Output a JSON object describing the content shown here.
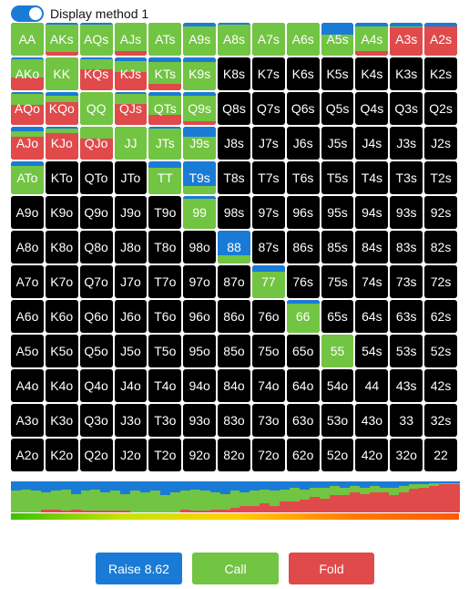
{
  "toggle": {
    "label": "Display method 1",
    "checked": true
  },
  "colors": {
    "raise": "#1a7bd6",
    "call": "#72c443",
    "fold": "#e04a4a",
    "empty": "#000000"
  },
  "legend_bar": {
    "min_color": "#3ec000",
    "max_color": "#ff5a00"
  },
  "buttons": {
    "raise_label": "Raise 8.62",
    "call_label": "Call",
    "fold_label": "Fold"
  },
  "grid": [
    [
      {
        "h": "AA",
        "r": 0,
        "c": 1,
        "f": 0
      },
      {
        "h": "AKs",
        "r": 0.05,
        "c": 0.85,
        "f": 0.1
      },
      {
        "h": "AQs",
        "r": 0.05,
        "c": 0.95,
        "f": 0
      },
      {
        "h": "AJs",
        "r": 0,
        "c": 0.85,
        "f": 0.15
      },
      {
        "h": "ATs",
        "r": 0,
        "c": 1,
        "f": 0
      },
      {
        "h": "A9s",
        "r": 0.1,
        "c": 0.9,
        "f": 0
      },
      {
        "h": "A8s",
        "r": 0.05,
        "c": 0.95,
        "f": 0
      },
      {
        "h": "A7s",
        "r": 0,
        "c": 1,
        "f": 0
      },
      {
        "h": "A6s",
        "r": 0,
        "c": 1,
        "f": 0
      },
      {
        "h": "A5s",
        "r": 0.35,
        "c": 0.65,
        "f": 0
      },
      {
        "h": "A4s",
        "r": 0.1,
        "c": 0.75,
        "f": 0.15
      },
      {
        "h": "A3s",
        "r": 0.1,
        "c": 0.05,
        "f": 0.85
      },
      {
        "h": "A2s",
        "r": 0.1,
        "c": 0,
        "f": 0.9
      }
    ],
    [
      {
        "h": "AKo",
        "r": 0.05,
        "c": 0.55,
        "f": 0.4
      },
      {
        "h": "KK",
        "r": 0,
        "c": 1,
        "f": 0
      },
      {
        "h": "KQs",
        "r": 0.05,
        "c": 0.3,
        "f": 0.65
      },
      {
        "h": "KJs",
        "r": 0.1,
        "c": 0.35,
        "f": 0.55
      },
      {
        "h": "KTs",
        "r": 0.15,
        "c": 0.65,
        "f": 0.2
      },
      {
        "h": "K9s",
        "r": 0.15,
        "c": 0.85,
        "f": 0
      },
      {
        "h": "K8s",
        "r": 0,
        "c": 0,
        "f": 0
      },
      {
        "h": "K7s",
        "r": 0,
        "c": 0,
        "f": 0
      },
      {
        "h": "K6s",
        "r": 0,
        "c": 0,
        "f": 0
      },
      {
        "h": "K5s",
        "r": 0,
        "c": 0,
        "f": 0
      },
      {
        "h": "K4s",
        "r": 0,
        "c": 0,
        "f": 0
      },
      {
        "h": "K3s",
        "r": 0,
        "c": 0,
        "f": 0
      },
      {
        "h": "K2s",
        "r": 0,
        "c": 0,
        "f": 0
      }
    ],
    [
      {
        "h": "AQo",
        "r": 0.05,
        "c": 0.35,
        "f": 0.6
      },
      {
        "h": "KQo",
        "r": 0.1,
        "c": 0.2,
        "f": 0.7
      },
      {
        "h": "QQ",
        "r": 0,
        "c": 1,
        "f": 0
      },
      {
        "h": "QJs",
        "r": 0.05,
        "c": 0.3,
        "f": 0.65
      },
      {
        "h": "QTs",
        "r": 0.1,
        "c": 0.6,
        "f": 0.3
      },
      {
        "h": "Q9s",
        "r": 0.1,
        "c": 0.8,
        "f": 0.1
      },
      {
        "h": "Q8s",
        "r": 0,
        "c": 0,
        "f": 0
      },
      {
        "h": "Q7s",
        "r": 0,
        "c": 0,
        "f": 0
      },
      {
        "h": "Q6s",
        "r": 0,
        "c": 0,
        "f": 0
      },
      {
        "h": "Q5s",
        "r": 0,
        "c": 0,
        "f": 0
      },
      {
        "h": "Q4s",
        "r": 0,
        "c": 0,
        "f": 0
      },
      {
        "h": "Q3s",
        "r": 0,
        "c": 0,
        "f": 0
      },
      {
        "h": "Q2s",
        "r": 0,
        "c": 0,
        "f": 0
      }
    ],
    [
      {
        "h": "AJo",
        "r": 0.15,
        "c": 0.15,
        "f": 0.7
      },
      {
        "h": "KJo",
        "r": 0.05,
        "c": 0.15,
        "f": 0.8
      },
      {
        "h": "QJo",
        "r": 0,
        "c": 0.35,
        "f": 0.65
      },
      {
        "h": "JJ",
        "r": 0,
        "c": 1,
        "f": 0
      },
      {
        "h": "JTs",
        "r": 0.05,
        "c": 0.95,
        "f": 0
      },
      {
        "h": "J9s",
        "r": 0.3,
        "c": 0.7,
        "f": 0
      },
      {
        "h": "J8s",
        "r": 0,
        "c": 0,
        "f": 0
      },
      {
        "h": "J7s",
        "r": 0,
        "c": 0,
        "f": 0
      },
      {
        "h": "J6s",
        "r": 0,
        "c": 0,
        "f": 0
      },
      {
        "h": "J5s",
        "r": 0,
        "c": 0,
        "f": 0
      },
      {
        "h": "J4s",
        "r": 0,
        "c": 0,
        "f": 0
      },
      {
        "h": "J3s",
        "r": 0,
        "c": 0,
        "f": 0
      },
      {
        "h": "J2s",
        "r": 0,
        "c": 0,
        "f": 0
      }
    ],
    [
      {
        "h": "ATo",
        "r": 0.15,
        "c": 0.85,
        "f": 0
      },
      {
        "h": "KTo",
        "r": 0,
        "c": 0,
        "f": 0
      },
      {
        "h": "QTo",
        "r": 0,
        "c": 0,
        "f": 0
      },
      {
        "h": "JTo",
        "r": 0,
        "c": 0,
        "f": 0
      },
      {
        "h": "TT",
        "r": 0.2,
        "c": 0.8,
        "f": 0
      },
      {
        "h": "T9s",
        "r": 0.75,
        "c": 0.25,
        "f": 0
      },
      {
        "h": "T8s",
        "r": 0,
        "c": 0,
        "f": 0
      },
      {
        "h": "T7s",
        "r": 0,
        "c": 0,
        "f": 0
      },
      {
        "h": "T6s",
        "r": 0,
        "c": 0,
        "f": 0
      },
      {
        "h": "T5s",
        "r": 0,
        "c": 0,
        "f": 0
      },
      {
        "h": "T4s",
        "r": 0,
        "c": 0,
        "f": 0
      },
      {
        "h": "T3s",
        "r": 0,
        "c": 0,
        "f": 0
      },
      {
        "h": "T2s",
        "r": 0,
        "c": 0,
        "f": 0
      }
    ],
    [
      {
        "h": "A9o",
        "r": 0,
        "c": 0,
        "f": 0
      },
      {
        "h": "K9o",
        "r": 0,
        "c": 0,
        "f": 0
      },
      {
        "h": "Q9o",
        "r": 0,
        "c": 0,
        "f": 0
      },
      {
        "h": "J9o",
        "r": 0,
        "c": 0,
        "f": 0
      },
      {
        "h": "T9o",
        "r": 0,
        "c": 0,
        "f": 0
      },
      {
        "h": "99",
        "r": 0.08,
        "c": 0.92,
        "f": 0
      },
      {
        "h": "98s",
        "r": 0,
        "c": 0,
        "f": 0
      },
      {
        "h": "97s",
        "r": 0,
        "c": 0,
        "f": 0
      },
      {
        "h": "96s",
        "r": 0,
        "c": 0,
        "f": 0
      },
      {
        "h": "95s",
        "r": 0,
        "c": 0,
        "f": 0
      },
      {
        "h": "94s",
        "r": 0,
        "c": 0,
        "f": 0
      },
      {
        "h": "93s",
        "r": 0,
        "c": 0,
        "f": 0
      },
      {
        "h": "92s",
        "r": 0,
        "c": 0,
        "f": 0
      }
    ],
    [
      {
        "h": "A8o",
        "r": 0,
        "c": 0,
        "f": 0
      },
      {
        "h": "K8o",
        "r": 0,
        "c": 0,
        "f": 0
      },
      {
        "h": "Q8o",
        "r": 0,
        "c": 0,
        "f": 0
      },
      {
        "h": "J8o",
        "r": 0,
        "c": 0,
        "f": 0
      },
      {
        "h": "T8o",
        "r": 0,
        "c": 0,
        "f": 0
      },
      {
        "h": "98o",
        "r": 0,
        "c": 0,
        "f": 0
      },
      {
        "h": "88",
        "r": 0.75,
        "c": 0.25,
        "f": 0
      },
      {
        "h": "87s",
        "r": 0,
        "c": 0,
        "f": 0
      },
      {
        "h": "86s",
        "r": 0,
        "c": 0,
        "f": 0
      },
      {
        "h": "85s",
        "r": 0,
        "c": 0,
        "f": 0
      },
      {
        "h": "84s",
        "r": 0,
        "c": 0,
        "f": 0
      },
      {
        "h": "83s",
        "r": 0,
        "c": 0,
        "f": 0
      },
      {
        "h": "82s",
        "r": 0,
        "c": 0,
        "f": 0
      }
    ],
    [
      {
        "h": "A7o",
        "r": 0,
        "c": 0,
        "f": 0
      },
      {
        "h": "K7o",
        "r": 0,
        "c": 0,
        "f": 0
      },
      {
        "h": "Q7o",
        "r": 0,
        "c": 0,
        "f": 0
      },
      {
        "h": "J7o",
        "r": 0,
        "c": 0,
        "f": 0
      },
      {
        "h": "T7o",
        "r": 0,
        "c": 0,
        "f": 0
      },
      {
        "h": "97o",
        "r": 0,
        "c": 0,
        "f": 0
      },
      {
        "h": "87o",
        "r": 0,
        "c": 0,
        "f": 0
      },
      {
        "h": "77",
        "r": 0.2,
        "c": 0.8,
        "f": 0
      },
      {
        "h": "76s",
        "r": 0,
        "c": 0,
        "f": 0
      },
      {
        "h": "75s",
        "r": 0,
        "c": 0,
        "f": 0
      },
      {
        "h": "74s",
        "r": 0,
        "c": 0,
        "f": 0
      },
      {
        "h": "73s",
        "r": 0,
        "c": 0,
        "f": 0
      },
      {
        "h": "72s",
        "r": 0,
        "c": 0,
        "f": 0
      }
    ],
    [
      {
        "h": "A6o",
        "r": 0,
        "c": 0,
        "f": 0
      },
      {
        "h": "K6o",
        "r": 0,
        "c": 0,
        "f": 0
      },
      {
        "h": "Q6o",
        "r": 0,
        "c": 0,
        "f": 0
      },
      {
        "h": "J6o",
        "r": 0,
        "c": 0,
        "f": 0
      },
      {
        "h": "T6o",
        "r": 0,
        "c": 0,
        "f": 0
      },
      {
        "h": "96o",
        "r": 0,
        "c": 0,
        "f": 0
      },
      {
        "h": "86o",
        "r": 0,
        "c": 0,
        "f": 0
      },
      {
        "h": "76o",
        "r": 0,
        "c": 0,
        "f": 0
      },
      {
        "h": "66",
        "r": 0.1,
        "c": 0.9,
        "f": 0
      },
      {
        "h": "65s",
        "r": 0,
        "c": 0,
        "f": 0
      },
      {
        "h": "64s",
        "r": 0,
        "c": 0,
        "f": 0
      },
      {
        "h": "63s",
        "r": 0,
        "c": 0,
        "f": 0
      },
      {
        "h": "62s",
        "r": 0,
        "c": 0,
        "f": 0
      }
    ],
    [
      {
        "h": "A5o",
        "r": 0,
        "c": 0,
        "f": 0
      },
      {
        "h": "K5o",
        "r": 0,
        "c": 0,
        "f": 0
      },
      {
        "h": "Q5o",
        "r": 0,
        "c": 0,
        "f": 0
      },
      {
        "h": "J5o",
        "r": 0,
        "c": 0,
        "f": 0
      },
      {
        "h": "T5o",
        "r": 0,
        "c": 0,
        "f": 0
      },
      {
        "h": "95o",
        "r": 0,
        "c": 0,
        "f": 0
      },
      {
        "h": "85o",
        "r": 0,
        "c": 0,
        "f": 0
      },
      {
        "h": "75o",
        "r": 0,
        "c": 0,
        "f": 0
      },
      {
        "h": "65o",
        "r": 0,
        "c": 0,
        "f": 0
      },
      {
        "h": "55",
        "r": 0,
        "c": 1,
        "f": 0
      },
      {
        "h": "54s",
        "r": 0,
        "c": 0,
        "f": 0
      },
      {
        "h": "53s",
        "r": 0,
        "c": 0,
        "f": 0
      },
      {
        "h": "52s",
        "r": 0,
        "c": 0,
        "f": 0
      }
    ],
    [
      {
        "h": "A4o",
        "r": 0,
        "c": 0,
        "f": 0
      },
      {
        "h": "K4o",
        "r": 0,
        "c": 0,
        "f": 0
      },
      {
        "h": "Q4o",
        "r": 0,
        "c": 0,
        "f": 0
      },
      {
        "h": "J4o",
        "r": 0,
        "c": 0,
        "f": 0
      },
      {
        "h": "T4o",
        "r": 0,
        "c": 0,
        "f": 0
      },
      {
        "h": "94o",
        "r": 0,
        "c": 0,
        "f": 0
      },
      {
        "h": "84o",
        "r": 0,
        "c": 0,
        "f": 0
      },
      {
        "h": "74o",
        "r": 0,
        "c": 0,
        "f": 0
      },
      {
        "h": "64o",
        "r": 0,
        "c": 0,
        "f": 0
      },
      {
        "h": "54o",
        "r": 0,
        "c": 0,
        "f": 0
      },
      {
        "h": "44",
        "r": 0,
        "c": 0,
        "f": 0
      },
      {
        "h": "43s",
        "r": 0,
        "c": 0,
        "f": 0
      },
      {
        "h": "42s",
        "r": 0,
        "c": 0,
        "f": 0
      }
    ],
    [
      {
        "h": "A3o",
        "r": 0,
        "c": 0,
        "f": 0
      },
      {
        "h": "K3o",
        "r": 0,
        "c": 0,
        "f": 0
      },
      {
        "h": "Q3o",
        "r": 0,
        "c": 0,
        "f": 0
      },
      {
        "h": "J3o",
        "r": 0,
        "c": 0,
        "f": 0
      },
      {
        "h": "T3o",
        "r": 0,
        "c": 0,
        "f": 0
      },
      {
        "h": "93o",
        "r": 0,
        "c": 0,
        "f": 0
      },
      {
        "h": "83o",
        "r": 0,
        "c": 0,
        "f": 0
      },
      {
        "h": "73o",
        "r": 0,
        "c": 0,
        "f": 0
      },
      {
        "h": "63o",
        "r": 0,
        "c": 0,
        "f": 0
      },
      {
        "h": "53o",
        "r": 0,
        "c": 0,
        "f": 0
      },
      {
        "h": "43o",
        "r": 0,
        "c": 0,
        "f": 0
      },
      {
        "h": "33",
        "r": 0,
        "c": 0,
        "f": 0
      },
      {
        "h": "32s",
        "r": 0,
        "c": 0,
        "f": 0
      }
    ],
    [
      {
        "h": "A2o",
        "r": 0,
        "c": 0,
        "f": 0
      },
      {
        "h": "K2o",
        "r": 0,
        "c": 0,
        "f": 0
      },
      {
        "h": "Q2o",
        "r": 0,
        "c": 0,
        "f": 0
      },
      {
        "h": "J2o",
        "r": 0,
        "c": 0,
        "f": 0
      },
      {
        "h": "T2o",
        "r": 0,
        "c": 0,
        "f": 0
      },
      {
        "h": "92o",
        "r": 0,
        "c": 0,
        "f": 0
      },
      {
        "h": "82o",
        "r": 0,
        "c": 0,
        "f": 0
      },
      {
        "h": "72o",
        "r": 0,
        "c": 0,
        "f": 0
      },
      {
        "h": "62o",
        "r": 0,
        "c": 0,
        "f": 0
      },
      {
        "h": "52o",
        "r": 0,
        "c": 0,
        "f": 0
      },
      {
        "h": "42o",
        "r": 0,
        "c": 0,
        "f": 0
      },
      {
        "h": "32o",
        "r": 0,
        "c": 0,
        "f": 0
      },
      {
        "h": "22",
        "r": 0,
        "c": 0,
        "f": 0
      }
    ]
  ],
  "strategy_bar": [
    {
      "r": 0.3,
      "c": 0.7,
      "f": 0
    },
    {
      "r": 0.25,
      "c": 0.75,
      "f": 0
    },
    {
      "r": 0.3,
      "c": 0.7,
      "f": 0
    },
    {
      "r": 0.35,
      "c": 0.55,
      "f": 0.1
    },
    {
      "r": 0.3,
      "c": 0.6,
      "f": 0.1
    },
    {
      "r": 0.25,
      "c": 0.7,
      "f": 0.05
    },
    {
      "r": 0.4,
      "c": 0.5,
      "f": 0.1
    },
    {
      "r": 0.3,
      "c": 0.65,
      "f": 0.05
    },
    {
      "r": 0.25,
      "c": 0.7,
      "f": 0.05
    },
    {
      "r": 0.35,
      "c": 0.6,
      "f": 0.05
    },
    {
      "r": 0.3,
      "c": 0.65,
      "f": 0.05
    },
    {
      "r": 0.4,
      "c": 0.55,
      "f": 0.05
    },
    {
      "r": 0.3,
      "c": 0.7,
      "f": 0
    },
    {
      "r": 0.35,
      "c": 0.65,
      "f": 0
    },
    {
      "r": 0.3,
      "c": 0.7,
      "f": 0
    },
    {
      "r": 0.45,
      "c": 0.55,
      "f": 0
    },
    {
      "r": 0.35,
      "c": 0.65,
      "f": 0
    },
    {
      "r": 0.3,
      "c": 0.6,
      "f": 0.1
    },
    {
      "r": 0.25,
      "c": 0.7,
      "f": 0.05
    },
    {
      "r": 0.3,
      "c": 0.65,
      "f": 0.05
    },
    {
      "r": 0.35,
      "c": 0.55,
      "f": 0.1
    },
    {
      "r": 0.4,
      "c": 0.5,
      "f": 0.1
    },
    {
      "r": 0.3,
      "c": 0.55,
      "f": 0.15
    },
    {
      "r": 0.35,
      "c": 0.45,
      "f": 0.2
    },
    {
      "r": 0.3,
      "c": 0.5,
      "f": 0.2
    },
    {
      "r": 0.25,
      "c": 0.45,
      "f": 0.3
    },
    {
      "r": 0.3,
      "c": 0.5,
      "f": 0.2
    },
    {
      "r": 0.25,
      "c": 0.4,
      "f": 0.35
    },
    {
      "r": 0.2,
      "c": 0.45,
      "f": 0.35
    },
    {
      "r": 0.25,
      "c": 0.35,
      "f": 0.4
    },
    {
      "r": 0.2,
      "c": 0.3,
      "f": 0.5
    },
    {
      "r": 0.2,
      "c": 0.35,
      "f": 0.45
    },
    {
      "r": 0.15,
      "c": 0.3,
      "f": 0.55
    },
    {
      "r": 0.2,
      "c": 0.25,
      "f": 0.55
    },
    {
      "r": 0.15,
      "c": 0.2,
      "f": 0.65
    },
    {
      "r": 0.2,
      "c": 0.2,
      "f": 0.6
    },
    {
      "r": 0.15,
      "c": 0.2,
      "f": 0.65
    },
    {
      "r": 0.2,
      "c": 0.15,
      "f": 0.65
    },
    {
      "r": 0.2,
      "c": 0.25,
      "f": 0.55
    },
    {
      "r": 0.15,
      "c": 0.2,
      "f": 0.65
    },
    {
      "r": 0.1,
      "c": 0.15,
      "f": 0.75
    },
    {
      "r": 0.1,
      "c": 0.1,
      "f": 0.8
    },
    {
      "r": 0.05,
      "c": 0.1,
      "f": 0.85
    },
    {
      "r": 0.05,
      "c": 0.05,
      "f": 0.9
    },
    {
      "r": 0.05,
      "c": 0.05,
      "f": 0.9
    }
  ]
}
